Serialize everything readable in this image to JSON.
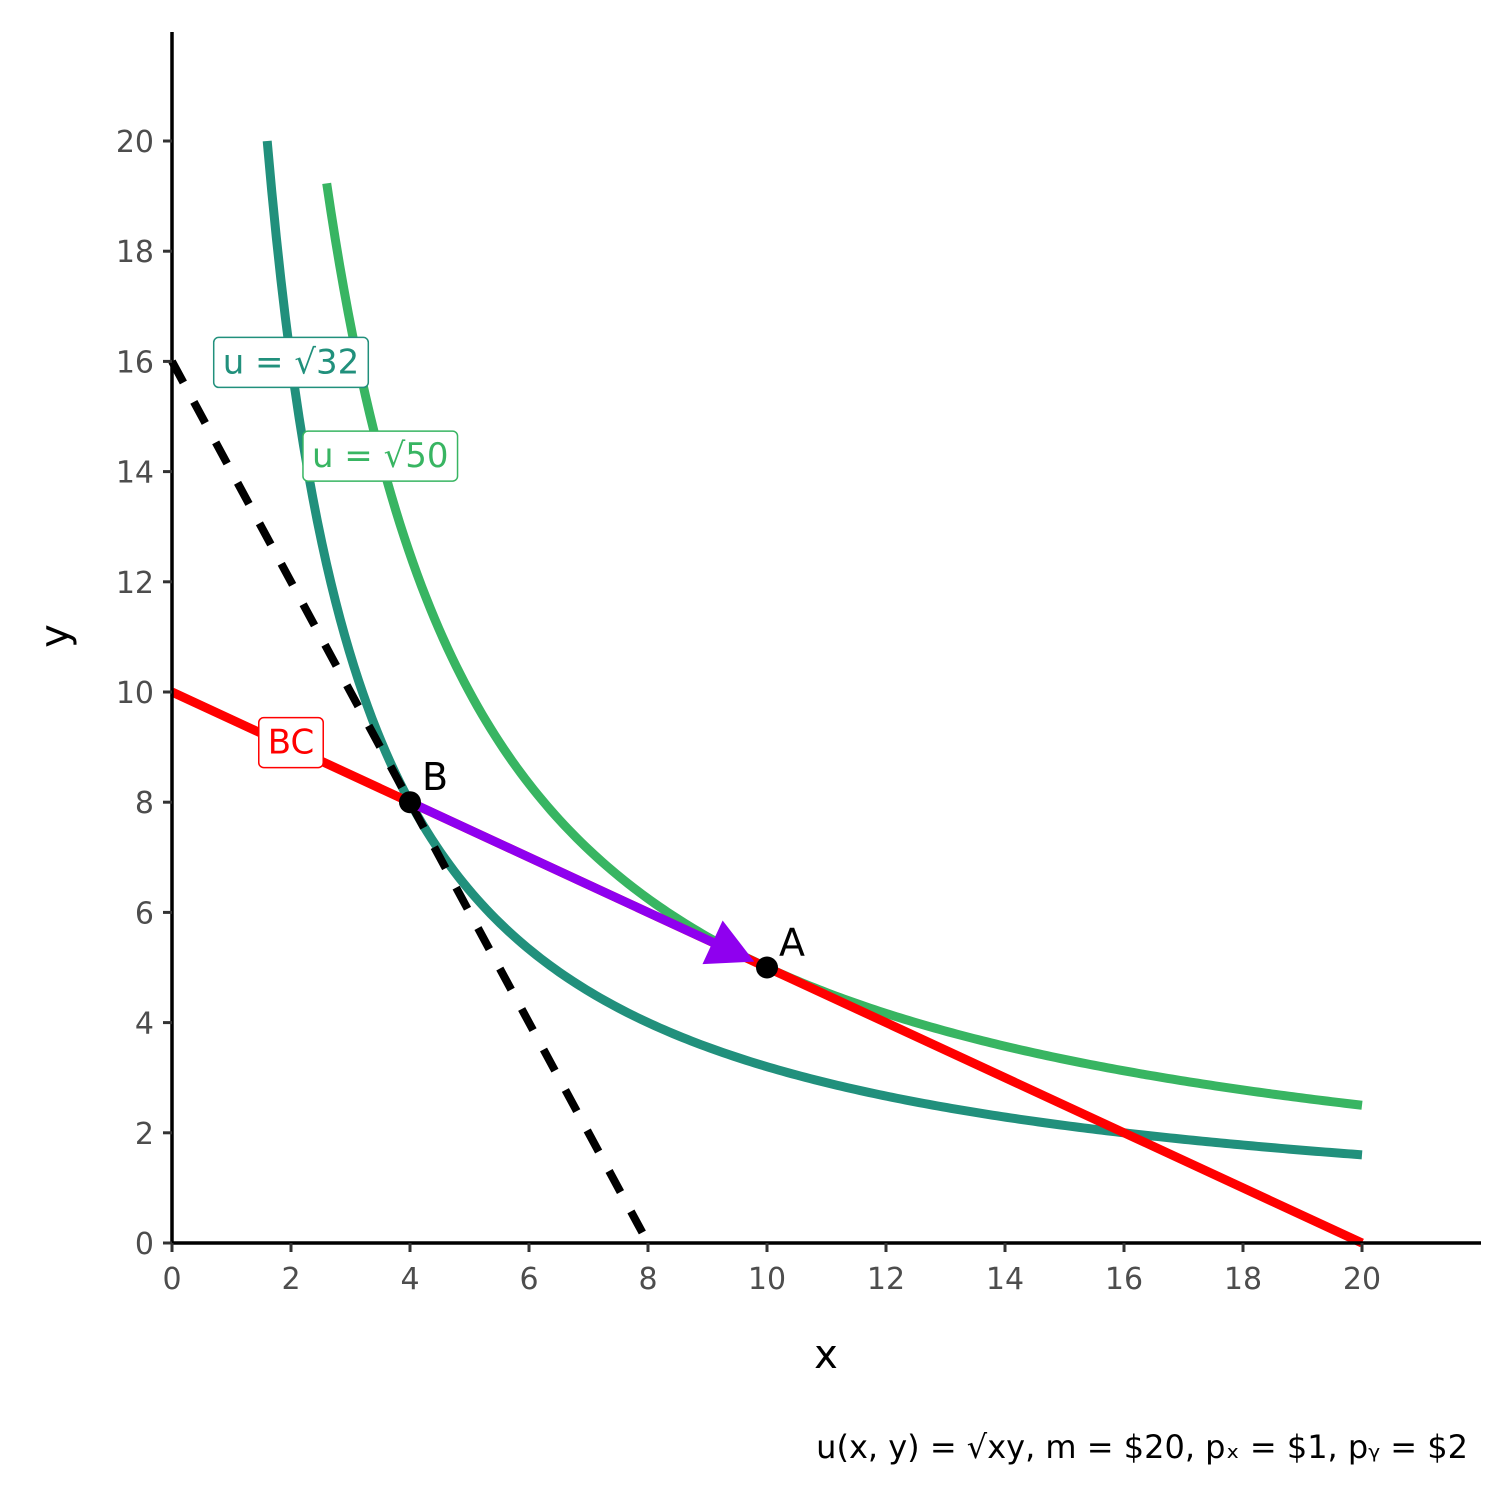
{
  "chart_data": {
    "type": "line",
    "title": "",
    "xlabel": "x",
    "ylabel": "y",
    "xlim": [
      0,
      22
    ],
    "ylim": [
      0,
      22
    ],
    "xticks": [
      0,
      2,
      4,
      6,
      8,
      10,
      12,
      14,
      16,
      18,
      20
    ],
    "yticks": [
      0,
      2,
      4,
      6,
      8,
      10,
      12,
      14,
      16,
      18,
      20
    ],
    "grid": false,
    "series": [
      {
        "name": "BC",
        "kind": "budget_line",
        "color": "#ff0000",
        "points": [
          [
            0,
            10
          ],
          [
            20,
            0
          ]
        ]
      },
      {
        "name": "",
        "kind": "budget_line_dashed",
        "color": "#000000",
        "points": [
          [
            0,
            16
          ],
          [
            8,
            0
          ]
        ]
      },
      {
        "name": "u = √32",
        "kind": "indifference",
        "color": "#21907c",
        "utility_squared": 32,
        "x_range": [
          1.6,
          20
        ]
      },
      {
        "name": "u = √50",
        "kind": "indifference",
        "color": "#38b562",
        "utility_squared": 50,
        "x_range": [
          2.6,
          20
        ]
      }
    ],
    "points": [
      {
        "label": "A",
        "x": 10,
        "y": 5
      },
      {
        "label": "B",
        "x": 4,
        "y": 8
      }
    ],
    "arrow": {
      "from": [
        4,
        8
      ],
      "to": [
        10,
        5
      ],
      "color": "#8f00ef"
    },
    "labels": [
      {
        "text": "u = √32",
        "x": 2,
        "y": 16,
        "color": "#21907c"
      },
      {
        "text": "u = √50",
        "x": 3.5,
        "y": 14.3,
        "color": "#38b562"
      },
      {
        "text": "BC",
        "x": 2,
        "y": 9.1,
        "color": "#ff0000"
      }
    ],
    "caption": "u(x, y) = √xy, m = $20, pₓ = $1, pᵧ = $2"
  }
}
